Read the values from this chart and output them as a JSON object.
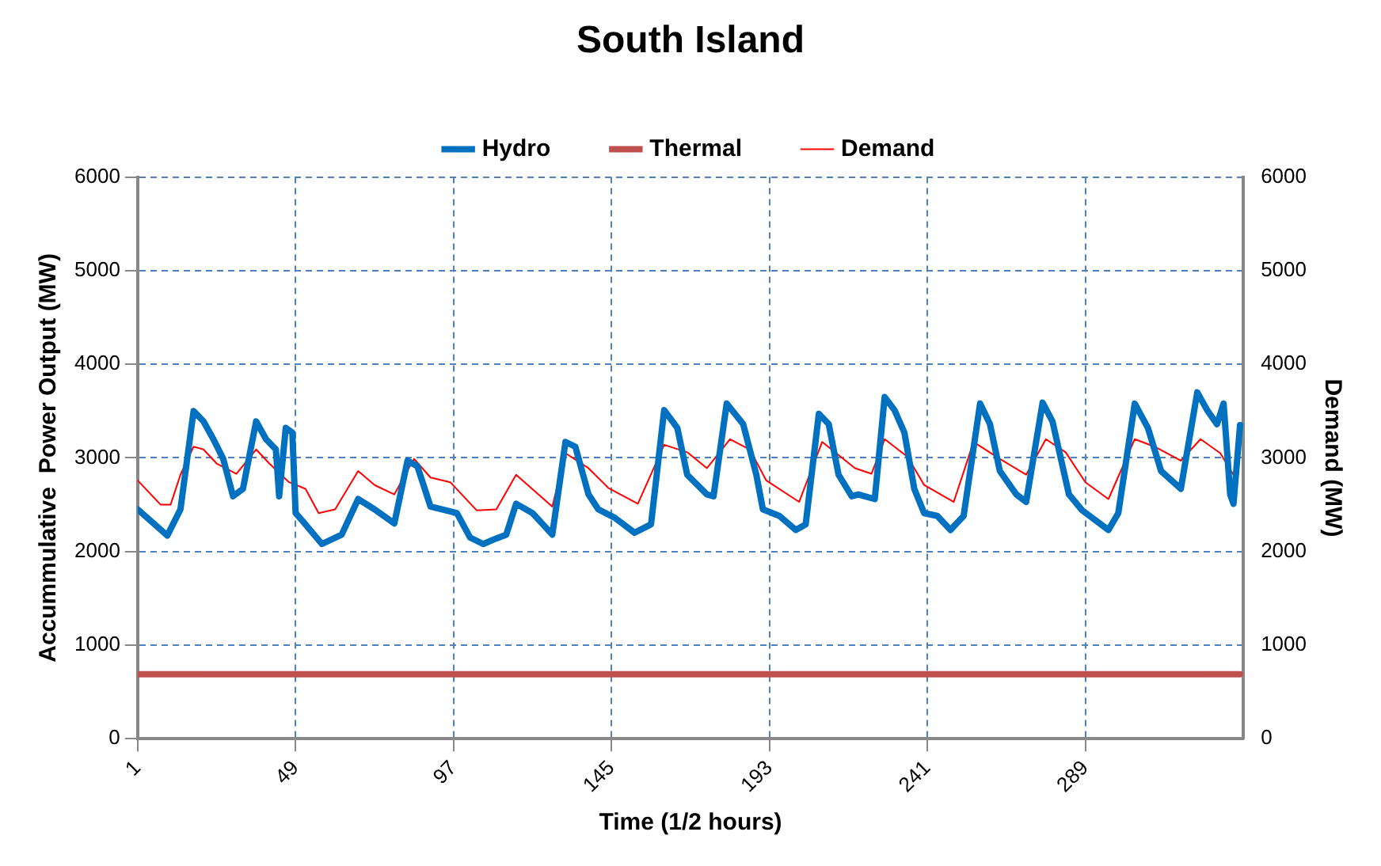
{
  "chart_data": {
    "type": "line",
    "title": "South Island",
    "xlabel": "Time (1/2 hours)",
    "ylabel": "Accummulative  Power Output (MW)",
    "y2label": "Demand (MW)",
    "xlim": [
      1,
      337
    ],
    "xticks": [
      1,
      49,
      97,
      145,
      193,
      241,
      289
    ],
    "ylim": [
      0,
      6000
    ],
    "yticks": [
      0,
      1000,
      2000,
      3000,
      4000,
      5000,
      6000
    ],
    "y2lim": [
      0,
      6000
    ],
    "y2ticks": [
      0,
      1000,
      2000,
      3000,
      4000,
      5000,
      6000
    ],
    "grid": true,
    "legend": "top",
    "marker": "none",
    "line_style": "solid",
    "series": [
      {
        "name": "Hydro",
        "color": "#0070c0",
        "x": [
          1,
          10,
          14,
          18,
          21,
          24,
          27,
          30,
          33,
          37,
          40,
          43,
          44,
          46,
          48,
          49,
          51,
          57,
          63,
          68,
          73,
          79,
          83,
          86,
          90,
          98,
          102,
          106,
          110,
          113,
          116,
          121,
          127,
          131,
          134,
          138,
          141,
          146,
          152,
          157,
          161,
          165,
          168,
          174,
          176,
          180,
          185,
          189,
          191,
          196,
          201,
          204,
          208,
          211,
          214,
          218,
          220,
          225,
          228,
          231,
          234,
          237,
          240,
          244,
          248,
          252,
          257,
          260,
          263,
          268,
          271,
          276,
          279,
          284,
          288,
          296,
          299,
          304,
          308,
          312,
          318,
          323,
          326,
          329,
          331,
          333,
          334,
          336
        ],
        "values": [
          2450,
          2170,
          2450,
          3500,
          3390,
          3200,
          2990,
          2590,
          2670,
          3390,
          3200,
          3090,
          2590,
          3320,
          3270,
          2410,
          2330,
          2080,
          2180,
          2560,
          2450,
          2300,
          2970,
          2910,
          2480,
          2410,
          2150,
          2080,
          2140,
          2180,
          2510,
          2410,
          2180,
          3170,
          3120,
          2610,
          2450,
          2360,
          2200,
          2290,
          3510,
          3320,
          2820,
          2610,
          2590,
          3580,
          3360,
          2820,
          2450,
          2380,
          2230,
          2290,
          3470,
          3360,
          2820,
          2590,
          2610,
          2560,
          3650,
          3510,
          3270,
          2670,
          2410,
          2380,
          2230,
          2380,
          3580,
          3360,
          2860,
          2610,
          2530,
          3590,
          3390,
          2610,
          2440,
          2230,
          2410,
          3580,
          3320,
          2860,
          2670,
          3700,
          3510,
          3360,
          3580,
          2610,
          2510,
          3350
        ]
      },
      {
        "name": "Thermal",
        "color": "#c0504d",
        "x": [
          1,
          336
        ],
        "values": [
          690,
          690
        ]
      },
      {
        "name": "Demand",
        "color": "#ff0000",
        "axis": "y2",
        "x": [
          1,
          8,
          11,
          14,
          18,
          21,
          25,
          31,
          37,
          41,
          47,
          52,
          56,
          61,
          68,
          73,
          79,
          85,
          90,
          96,
          104,
          110,
          116,
          127,
          131,
          138,
          144,
          153,
          161,
          168,
          174,
          181,
          187,
          192,
          202,
          209,
          219,
          224,
          228,
          235,
          240,
          249,
          255,
          263,
          271,
          277,
          283,
          289,
          296,
          304,
          310,
          318,
          324,
          330,
          335
        ],
        "values": [
          2760,
          2500,
          2500,
          2820,
          3120,
          3090,
          2940,
          2830,
          3090,
          2940,
          2740,
          2670,
          2410,
          2450,
          2860,
          2710,
          2610,
          2990,
          2790,
          2740,
          2440,
          2450,
          2820,
          2480,
          3050,
          2890,
          2680,
          2510,
          3140,
          3060,
          2890,
          3200,
          3090,
          2760,
          2530,
          3170,
          2890,
          2830,
          3200,
          3010,
          2710,
          2530,
          3170,
          2990,
          2820,
          3200,
          3060,
          2740,
          2560,
          3200,
          3120,
          2970,
          3200,
          3050,
          2760
        ]
      }
    ]
  }
}
